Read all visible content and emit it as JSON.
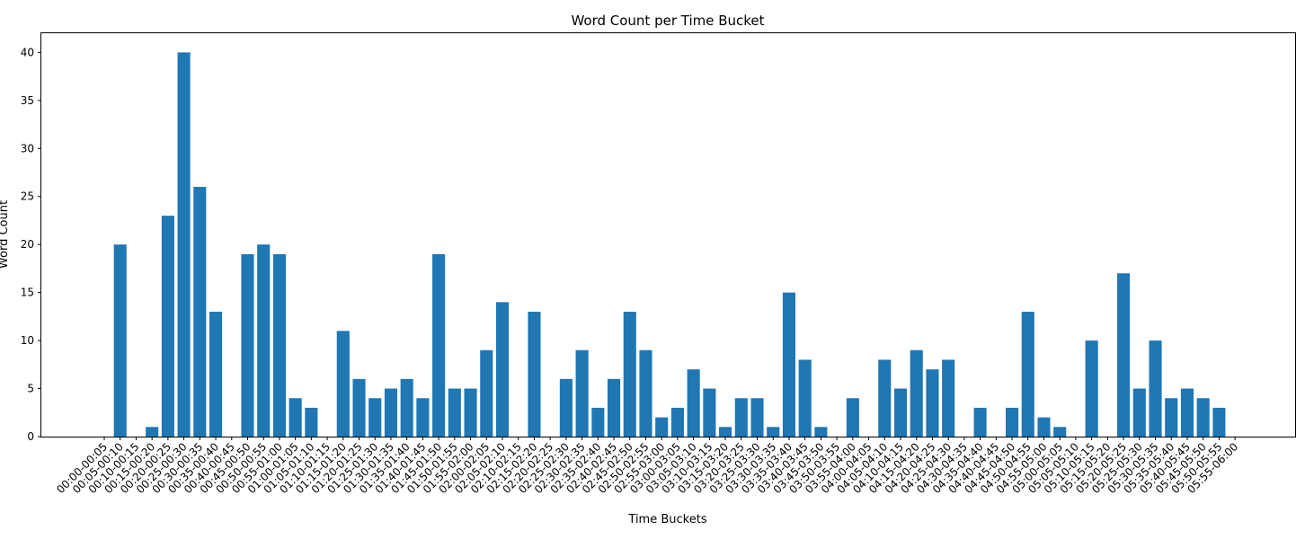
{
  "chart_data": {
    "type": "bar",
    "title": "Word Count per Time Bucket",
    "xlabel": "Time Buckets",
    "ylabel": "Word Count",
    "ylim": [
      0,
      42
    ],
    "yticks": [
      0,
      5,
      10,
      15,
      20,
      25,
      30,
      35,
      40
    ],
    "bar_color": "#1f77b4",
    "categories": [
      "00:00-00:05",
      "00:05-00:10",
      "00:10-00:15",
      "00:15-00:20",
      "00:20-00:25",
      "00:25-00:30",
      "00:30-00:35",
      "00:35-00:40",
      "00:40-00:45",
      "00:45-00:50",
      "00:50-00:55",
      "00:55-01:00",
      "01:00-01:05",
      "01:05-01:10",
      "01:10-01:15",
      "01:15-01:20",
      "01:20-01:25",
      "01:25-01:30",
      "01:30-01:35",
      "01:35-01:40",
      "01:40-01:45",
      "01:45-01:50",
      "01:50-01:55",
      "01:55-02:00",
      "02:00-02:05",
      "02:05-02:10",
      "02:10-02:15",
      "02:15-02:20",
      "02:20-02:25",
      "02:25-02:30",
      "02:30-02:35",
      "02:35-02:40",
      "02:40-02:45",
      "02:45-02:50",
      "02:50-02:55",
      "02:55-03:00",
      "03:00-03:05",
      "03:05-03:10",
      "03:10-03:15",
      "03:15-03:20",
      "03:20-03:25",
      "03:25-03:30",
      "03:30-03:35",
      "03:35-03:40",
      "03:40-03:45",
      "03:45-03:50",
      "03:50-03:55",
      "03:55-04:00",
      "04:00-04:05",
      "04:05-04:10",
      "04:10-04:15",
      "04:15-04:20",
      "04:20-04:25",
      "04:25-04:30",
      "04:30-04:35",
      "04:35-04:40",
      "04:40-04:45",
      "04:45-04:50",
      "04:50-04:55",
      "04:55-05:00",
      "05:00-05:05",
      "05:05-05:10",
      "05:10-05:15",
      "05:15-05:20",
      "05:20-05:25",
      "05:25-05:30",
      "05:30-05:35",
      "05:35-05:40",
      "05:40-05:45",
      "05:45-05:50",
      "05:50-05:55",
      "05:55-06:00"
    ],
    "values": [
      0,
      20,
      0,
      1,
      23,
      40,
      26,
      13,
      0,
      19,
      20,
      19,
      4,
      3,
      0,
      11,
      6,
      4,
      5,
      6,
      4,
      19,
      5,
      5,
      9,
      14,
      0,
      13,
      0,
      6,
      9,
      3,
      6,
      13,
      9,
      2,
      3,
      7,
      5,
      1,
      4,
      4,
      1,
      15,
      8,
      1,
      0,
      4,
      0,
      8,
      5,
      9,
      7,
      8,
      0,
      3,
      0,
      3,
      13,
      2,
      1,
      0,
      10,
      0,
      17,
      5,
      10,
      4,
      5,
      4,
      3,
      0
    ]
  }
}
